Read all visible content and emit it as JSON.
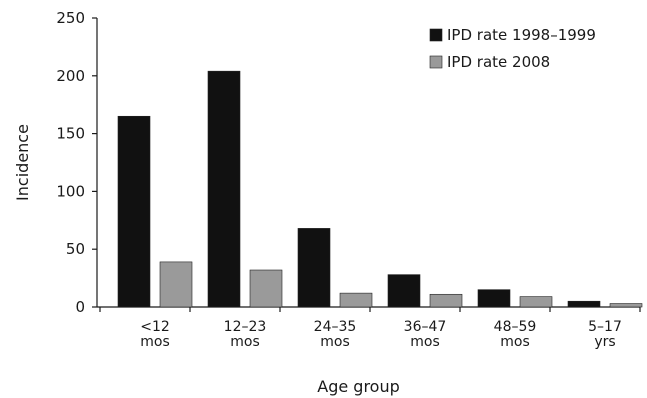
{
  "chart_data": {
    "type": "bar",
    "title": "",
    "xlabel": "Age group",
    "ylabel": "Incidence",
    "ylim": [
      0,
      250
    ],
    "yticks": [
      0,
      50,
      100,
      150,
      200,
      250
    ],
    "grid": false,
    "legend_position": "top-right",
    "categories": [
      [
        "<12",
        "mos"
      ],
      [
        "12–23",
        "mos"
      ],
      [
        "24–35",
        "mos"
      ],
      [
        "36–47",
        "mos"
      ],
      [
        "48–59",
        "mos"
      ],
      [
        "5–17",
        "yrs"
      ]
    ],
    "series": [
      {
        "name": "IPD rate 1998–1999",
        "color": "#111111",
        "values": [
          165,
          204,
          68,
          28,
          15,
          5
        ]
      },
      {
        "name": "IPD rate 2008",
        "color": "#9a9a9a",
        "values": [
          39,
          32,
          12,
          11,
          9,
          3
        ]
      }
    ]
  }
}
